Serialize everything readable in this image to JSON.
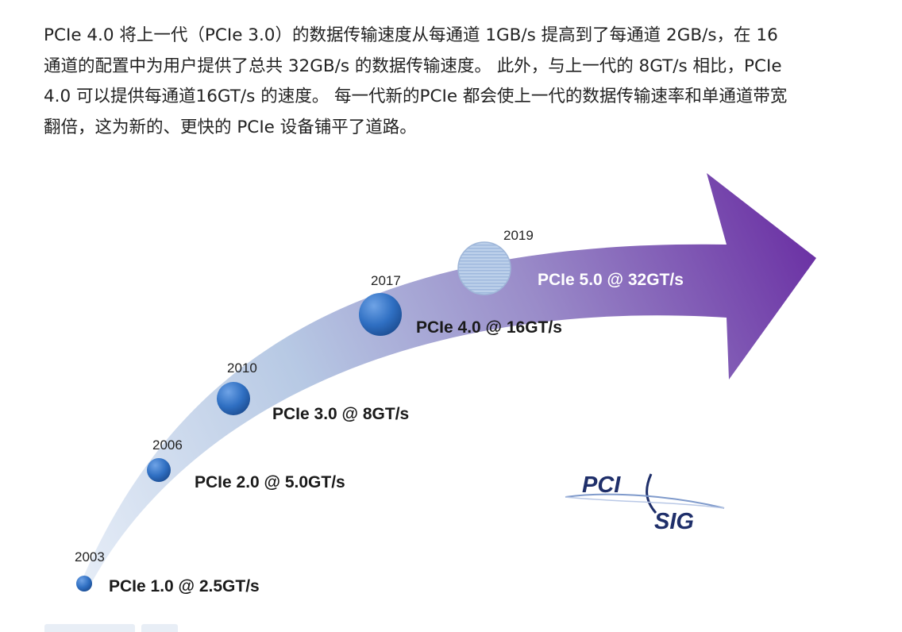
{
  "paragraph_lines": [
    "PCIe 4.0 将上一代（PCIe 3.0）的数据传输速度从每通道 1GB/s 提高到了每通道 2GB/s，在 16",
    "通道的配置中为用户提供了总共 32GB/s 的数据传输速度。 此外，与上一代的 8GT/s 相比，PCIe",
    "4.0 可以提供每通道16GT/s 的速度。 每一代新的PCIe 都会使上一代的数据传输速率和单通道带宽",
    "翻倍，这为新的、更快的 PCIe 设备铺平了道路。"
  ],
  "generations": [
    {
      "year": "2003",
      "label": "PCIe 1.0 @ 2.5GT/s"
    },
    {
      "year": "2006",
      "label": "PCIe 2.0 @ 5.0GT/s"
    },
    {
      "year": "2010",
      "label": "PCIe 3.0 @ 8GT/s"
    },
    {
      "year": "2017",
      "label": "PCIe 4.0 @ 16GT/s"
    },
    {
      "year": "2019",
      "label": "PCIe 5.0 @ 32GT/s"
    }
  ],
  "logo": {
    "top": "PCI",
    "bottom": "SIG"
  },
  "colors": {
    "dot": "#2f6fc2",
    "arrow_start": "#dfe8f5",
    "arrow_end": "#7a3fb0",
    "future_dot": "#b8cde6"
  }
}
